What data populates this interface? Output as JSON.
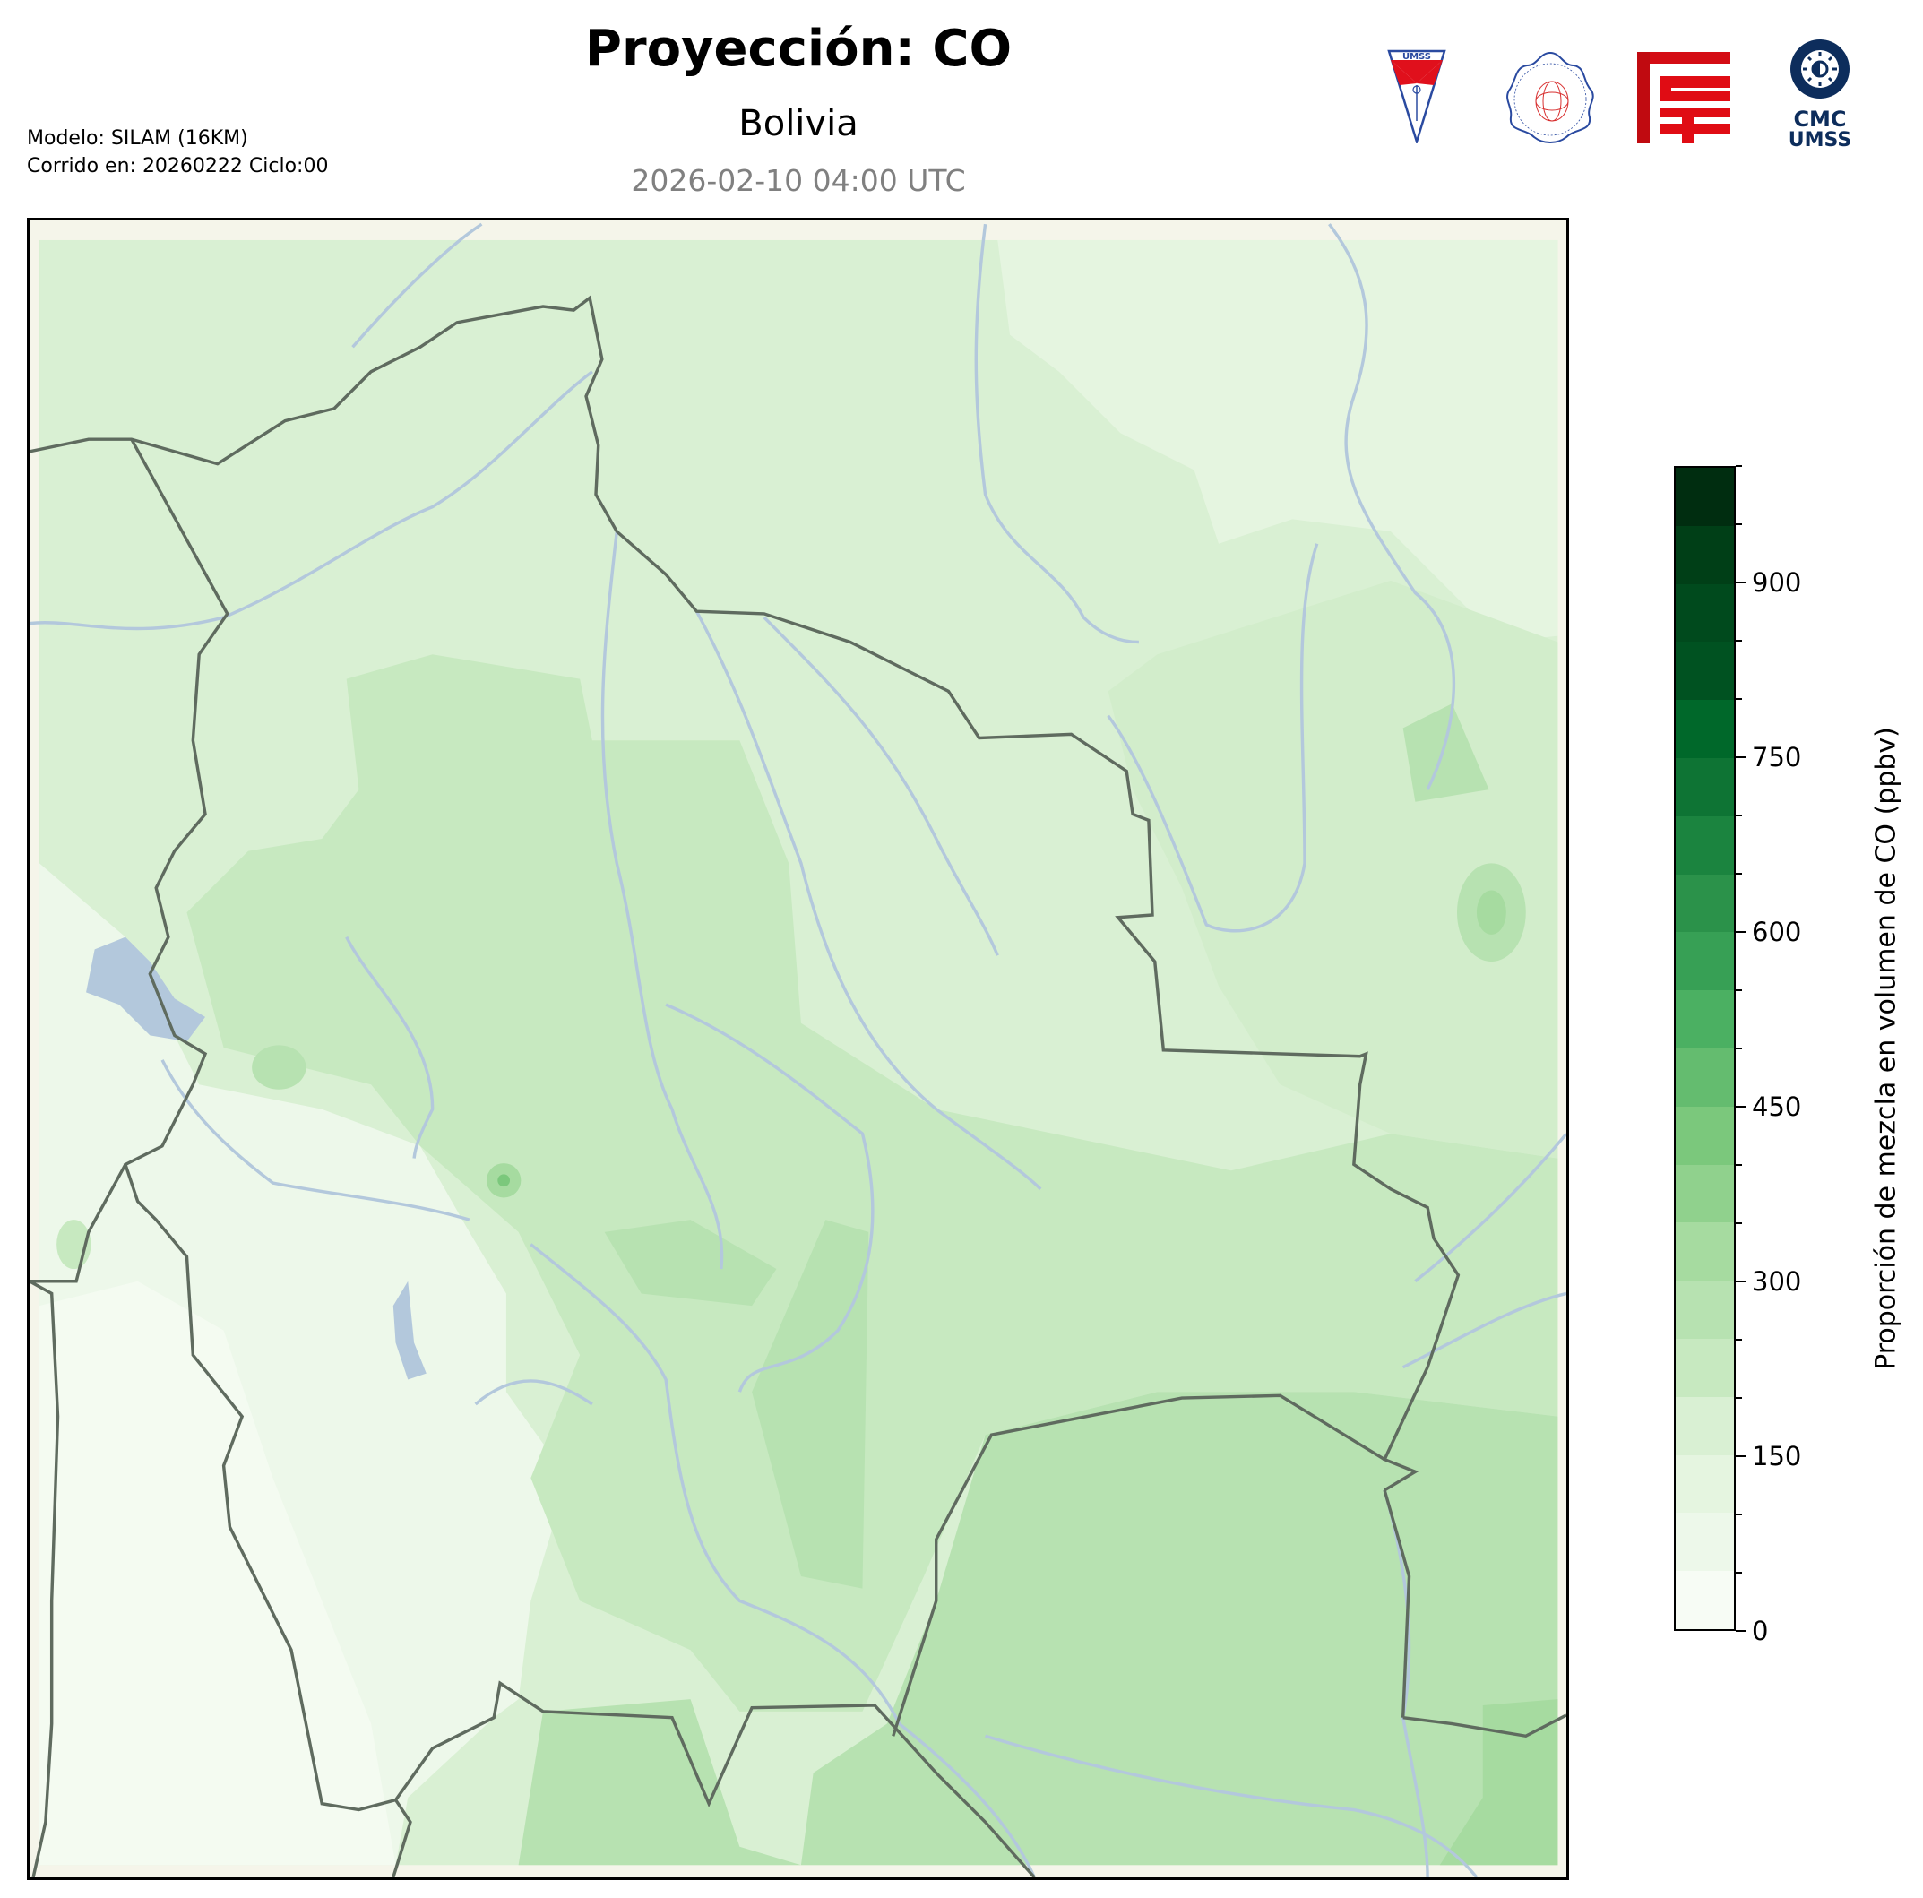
{
  "header": {
    "title": "Proyección: CO",
    "subtitle": "Bolivia",
    "datetime": "2026-02-10 04:00 UTC",
    "model_line": "Modelo: SILAM (16KM)",
    "run_line": "Corrido en: 20260222 Ciclo:00"
  },
  "logos": {
    "umss": "UMSS",
    "fisica": "DEPARTAMENTO DE FÍSICA FCyT-UMSS",
    "fcyt": "FCyT",
    "cmc_line1": "CMC",
    "cmc_line2": "UMSS"
  },
  "colors": {
    "map_background": "#f5f5ea",
    "lakes_rivers": "#b3c8dc",
    "borders": "#5f6b5f",
    "colormap": [
      "#f7fcf5",
      "#edf8ea",
      "#e5f5e0",
      "#d9f0d3",
      "#c7e9c0",
      "#b7e2b1",
      "#a6dba0",
      "#90d18d",
      "#7bc87c",
      "#64bc6f",
      "#4bb062",
      "#37a055",
      "#2b924a",
      "#1b843f",
      "#0e7434",
      "#00682a",
      "#005221",
      "#004a1d",
      "#003f17",
      "#002d10"
    ]
  },
  "chart_data": {
    "type": "heatmap",
    "region": "Bolivia",
    "variable": "CO",
    "colorbar": {
      "label": "Proporción de mezcla en volumen de CO (ppbv)",
      "range": [
        0,
        1000
      ],
      "bin_width": 50,
      "ticks": [
        0,
        150,
        300,
        450,
        600,
        750,
        900
      ],
      "tick_labels": [
        "0",
        "150",
        "300",
        "450",
        "600",
        "750",
        "900"
      ],
      "orientation": "vertical",
      "placement": "right"
    },
    "field_summary": "values mostly 50–300 ppbv; highest (250–350) in the southeast and small hotspots"
  }
}
